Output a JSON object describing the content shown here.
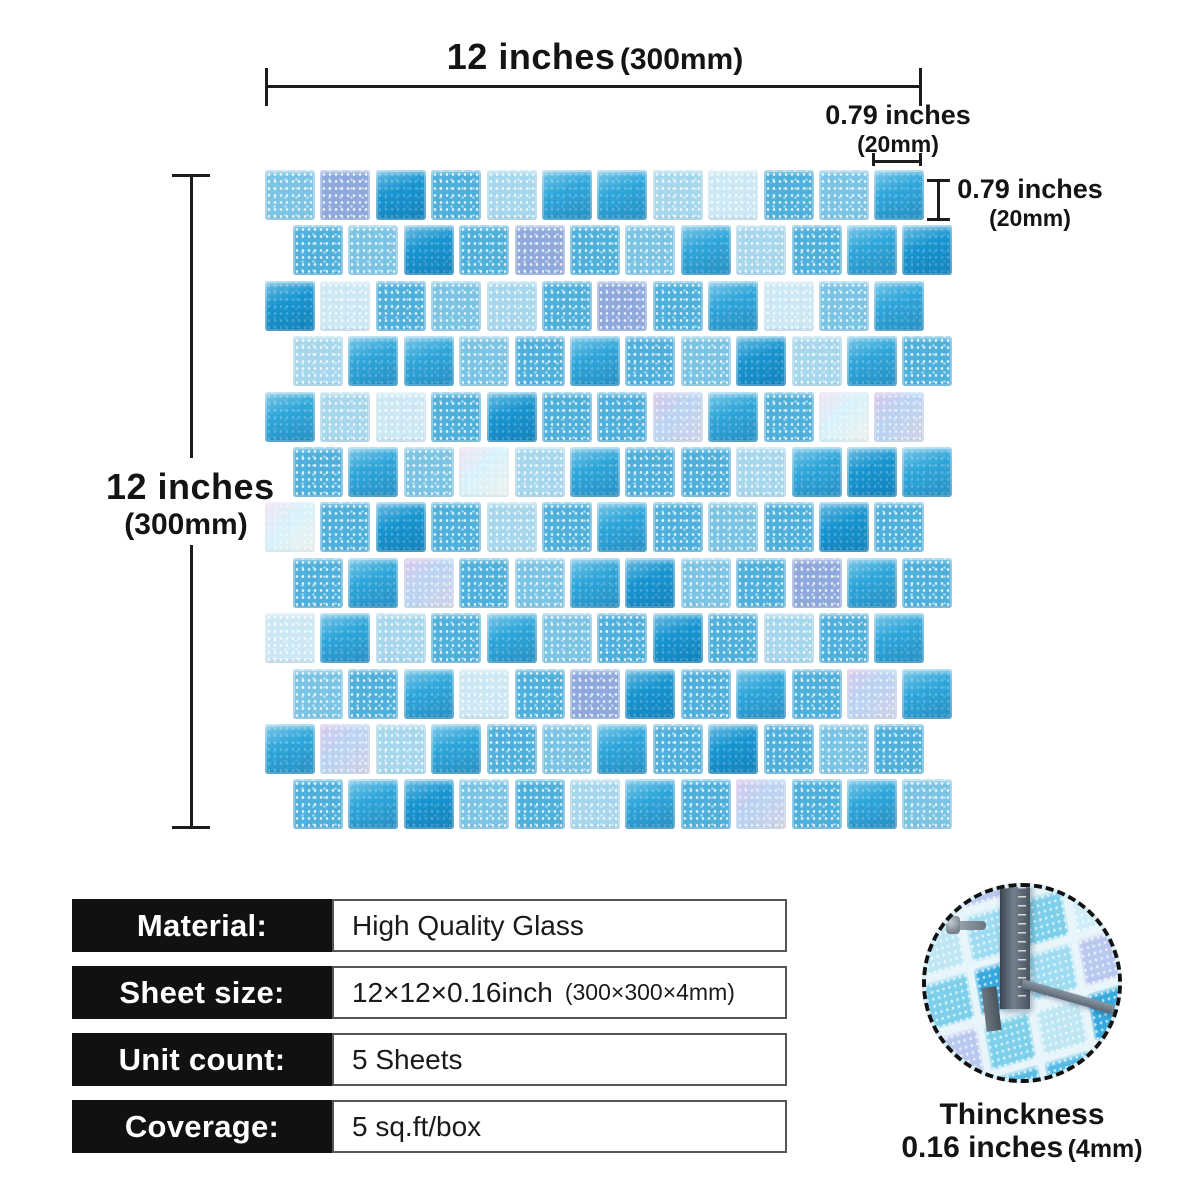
{
  "page": {
    "background": "#ffffff"
  },
  "dims": {
    "sheet_width": {
      "label": "12 inches",
      "metric": "(300mm)"
    },
    "sheet_height": {
      "label": "12 inches",
      "metric": "(300mm)"
    },
    "tile_width": {
      "label": "0.79 inches",
      "metric": "(20mm)"
    },
    "tile_height": {
      "label": "0.79 inches",
      "metric": "(20mm)"
    }
  },
  "mosaic": {
    "rows": 12,
    "cols": 12,
    "grout_color": "#eef4f6",
    "palette": [
      {
        "hex": "#1795d0",
        "style": "solid",
        "name": "deep-blue-glass"
      },
      {
        "hex": "#2ea6da",
        "style": "solid",
        "name": "bright-blue-glass"
      },
      {
        "hex": "#4fb0dc",
        "style": "speckle",
        "name": "medium-speckled-blue"
      },
      {
        "hex": "#7cc4e4",
        "style": "speckle",
        "name": "light-sky-speckled"
      },
      {
        "hex": "#a6d7ec",
        "style": "speckle",
        "name": "ice-blue-speckled"
      },
      {
        "hex": "#cbe8f4",
        "style": "speckle",
        "name": "pale-frost-speckled"
      },
      {
        "hex": "#8fa9dc",
        "style": "speckle",
        "name": "periwinkle-speckled"
      },
      {
        "hex": "#bcc6ec",
        "style": "pearl",
        "name": "lavender-iridescent"
      },
      {
        "hex": "#e5f2f8",
        "style": "pearl",
        "name": "white-iridescent"
      }
    ],
    "tiles": [
      [
        3,
        6,
        0,
        2,
        4,
        1,
        1,
        4,
        5,
        2,
        3,
        1
      ],
      [
        2,
        3,
        0,
        2,
        6,
        2,
        3,
        1,
        4,
        2,
        1,
        0
      ],
      [
        0,
        5,
        2,
        3,
        4,
        2,
        6,
        2,
        1,
        5,
        3,
        1
      ],
      [
        4,
        1,
        1,
        3,
        2,
        1,
        2,
        3,
        0,
        4,
        1,
        2
      ],
      [
        1,
        4,
        5,
        2,
        0,
        2,
        2,
        7,
        1,
        2,
        8,
        7
      ],
      [
        2,
        1,
        3,
        8,
        4,
        1,
        2,
        2,
        4,
        1,
        0,
        1
      ],
      [
        8,
        2,
        0,
        2,
        4,
        2,
        1,
        2,
        3,
        2,
        0,
        2
      ],
      [
        2,
        1,
        7,
        2,
        3,
        1,
        0,
        3,
        2,
        6,
        1,
        2
      ],
      [
        5,
        1,
        4,
        2,
        1,
        3,
        2,
        0,
        2,
        4,
        2,
        1
      ],
      [
        3,
        2,
        1,
        5,
        2,
        6,
        0,
        2,
        1,
        2,
        7,
        1
      ],
      [
        1,
        7,
        4,
        1,
        2,
        3,
        1,
        2,
        0,
        2,
        3,
        2
      ],
      [
        2,
        1,
        0,
        3,
        2,
        4,
        1,
        2,
        7,
        2,
        1,
        3
      ]
    ]
  },
  "specs": {
    "rows": [
      {
        "label": "Material:",
        "value": "High Quality Glass",
        "value_small": ""
      },
      {
        "label": "Sheet size:",
        "value": "12×12×0.16inch",
        "value_small": "(300×300×4mm)"
      },
      {
        "label": "Unit count:",
        "value": "5 Sheets",
        "value_small": ""
      },
      {
        "label": "Coverage:",
        "value": "5 sq.ft/box",
        "value_small": ""
      }
    ]
  },
  "thickness": {
    "title": "Thinckness",
    "value": "0.16 inches",
    "metric": "(4mm)",
    "photo_palette": [
      "#55bbe5",
      "#9edcf1",
      "#cdeef8",
      "#36a9de",
      "#bfe7f3",
      "#7ed0ea",
      "#b8c8ee"
    ]
  }
}
